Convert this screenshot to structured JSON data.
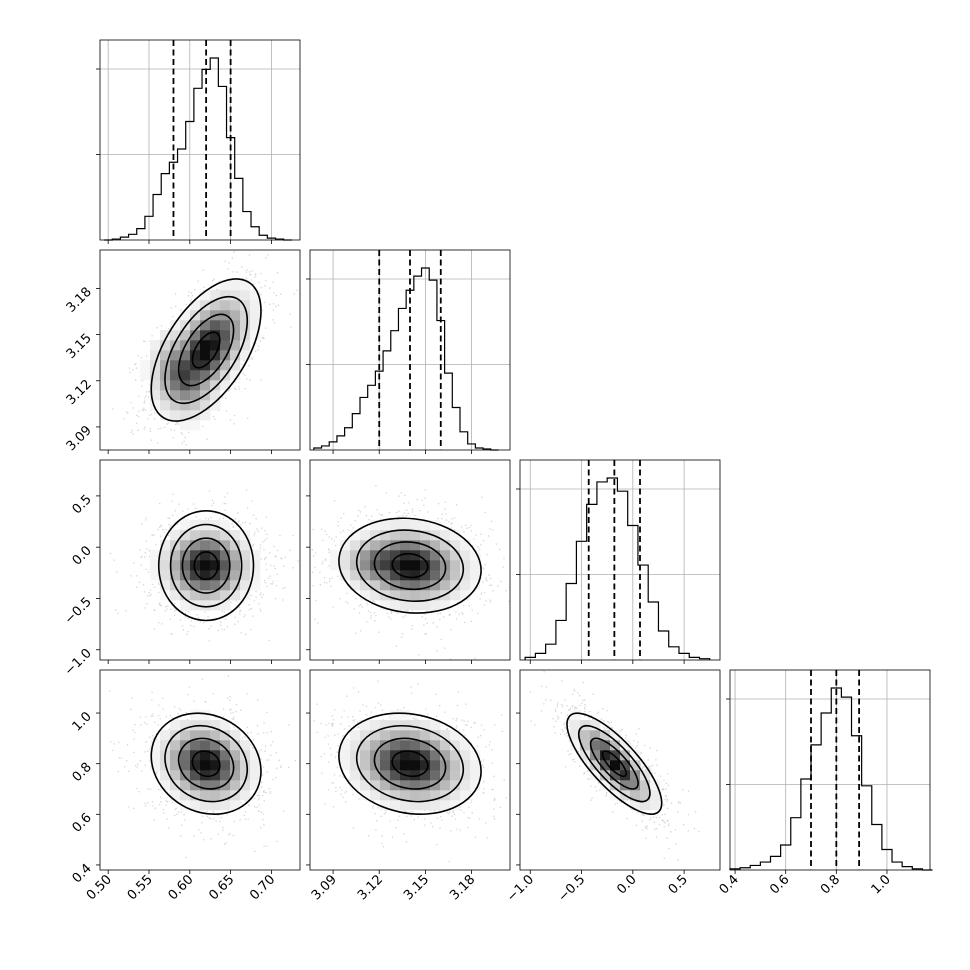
{
  "chart_data": {
    "type": "corner",
    "title": "",
    "parameters": [
      {
        "index": 0,
        "range": [
          0.49,
          0.735
        ],
        "ticks": [
          0.5,
          0.55,
          0.6,
          0.65,
          0.7
        ],
        "tick_labels": [
          "0.50",
          "0.55",
          "0.60",
          "0.65",
          "0.70"
        ],
        "quantiles": [
          0.58,
          0.62,
          0.65
        ],
        "median": 0.62
      },
      {
        "index": 1,
        "range": [
          3.075,
          3.205
        ],
        "ticks": [
          3.09,
          3.12,
          3.15,
          3.18
        ],
        "tick_labels": [
          "3.09",
          "3.12",
          "3.15",
          "3.18"
        ],
        "quantiles": [
          3.12,
          3.14,
          3.16
        ],
        "median": 3.14
      },
      {
        "index": 2,
        "range": [
          -1.1,
          0.85
        ],
        "ticks": [
          -1.0,
          -0.5,
          0.0,
          0.5
        ],
        "tick_labels": [
          "−1.0",
          "−0.5",
          "0.0",
          "0.5"
        ],
        "quantiles": [
          -0.43,
          -0.18,
          0.07
        ],
        "median": -0.18
      },
      {
        "index": 3,
        "range": [
          0.38,
          1.17
        ],
        "ticks": [
          0.4,
          0.6,
          0.8,
          1.0
        ],
        "tick_labels": [
          "0.4",
          "0.6",
          "0.8",
          "1.0"
        ],
        "quantiles": [
          0.7,
          0.8,
          0.89
        ],
        "median": 0.8
      }
    ],
    "histograms": [
      {
        "param": 0,
        "bin_centers": [
          0.5,
          0.51,
          0.52,
          0.53,
          0.54,
          0.55,
          0.56,
          0.57,
          0.58,
          0.59,
          0.6,
          0.61,
          0.62,
          0.63,
          0.64,
          0.65,
          0.66,
          0.67,
          0.68,
          0.69,
          0.7,
          0.71,
          0.72
        ],
        "counts": [
          0,
          1,
          3,
          6,
          12,
          25,
          48,
          70,
          82,
          96,
          125,
          160,
          180,
          192,
          162,
          108,
          65,
          30,
          14,
          5,
          2,
          1,
          0
        ]
      },
      {
        "param": 1,
        "bin_centers": [
          3.08,
          3.085,
          3.09,
          3.095,
          3.1,
          3.105,
          3.11,
          3.115,
          3.12,
          3.125,
          3.13,
          3.135,
          3.14,
          3.145,
          3.15,
          3.155,
          3.16,
          3.165,
          3.17,
          3.175,
          3.18,
          3.185,
          3.19,
          3.195
        ],
        "counts": [
          2,
          4,
          8,
          14,
          22,
          36,
          52,
          64,
          78,
          98,
          118,
          140,
          158,
          172,
          180,
          168,
          128,
          76,
          42,
          18,
          6,
          2,
          1,
          0
        ]
      },
      {
        "param": 2,
        "bin_centers": [
          -1.0,
          -0.9,
          -0.8,
          -0.7,
          -0.6,
          -0.5,
          -0.4,
          -0.3,
          -0.2,
          -0.1,
          0.0,
          0.1,
          0.2,
          0.3,
          0.4,
          0.5,
          0.6,
          0.7
        ],
        "counts": [
          2,
          5,
          12,
          30,
          58,
          90,
          118,
          135,
          138,
          128,
          102,
          72,
          44,
          22,
          10,
          5,
          2,
          1
        ]
      },
      {
        "param": 3,
        "bin_centers": [
          0.4,
          0.44,
          0.48,
          0.52,
          0.56,
          0.6,
          0.64,
          0.68,
          0.72,
          0.76,
          0.8,
          0.84,
          0.88,
          0.92,
          0.96,
          1.0,
          1.04,
          1.08,
          1.12,
          1.16
        ],
        "counts": [
          1,
          2,
          4,
          7,
          12,
          22,
          46,
          80,
          110,
          138,
          160,
          152,
          118,
          74,
          40,
          18,
          7,
          3,
          1,
          0
        ]
      }
    ],
    "joint_distributions": [
      {
        "row": 1,
        "col": 0,
        "mean": [
          0.62,
          3.14
        ],
        "sd": [
          0.032,
          0.022
        ],
        "correlation": 0.55,
        "secondary_mode": [
          0.595,
          3.125
        ]
      },
      {
        "row": 2,
        "col": 0,
        "mean": [
          0.62,
          -0.18
        ],
        "sd": [
          0.032,
          0.22
        ],
        "correlation": 0.0
      },
      {
        "row": 2,
        "col": 1,
        "mean": [
          3.14,
          -0.18
        ],
        "sd": [
          0.022,
          0.22
        ],
        "correlation": -0.1,
        "secondary_mode": [
          3.125,
          -0.15
        ]
      },
      {
        "row": 3,
        "col": 0,
        "mean": [
          0.62,
          0.8
        ],
        "sd": [
          0.032,
          0.095
        ],
        "correlation": -0.15
      },
      {
        "row": 3,
        "col": 1,
        "mean": [
          3.14,
          0.8
        ],
        "sd": [
          0.022,
          0.095
        ],
        "correlation": -0.15
      },
      {
        "row": 3,
        "col": 2,
        "mean": [
          -0.18,
          0.8
        ],
        "sd": [
          0.22,
          0.095
        ],
        "correlation": -0.78
      }
    ],
    "contour_levels_sigma": [
      0.5,
      1.0,
      1.5,
      2.0
    ],
    "grid": true,
    "colors": {
      "points": "#888888",
      "lines": "#000000",
      "grid": "#b0b0b0",
      "density_max": "#000000"
    }
  }
}
